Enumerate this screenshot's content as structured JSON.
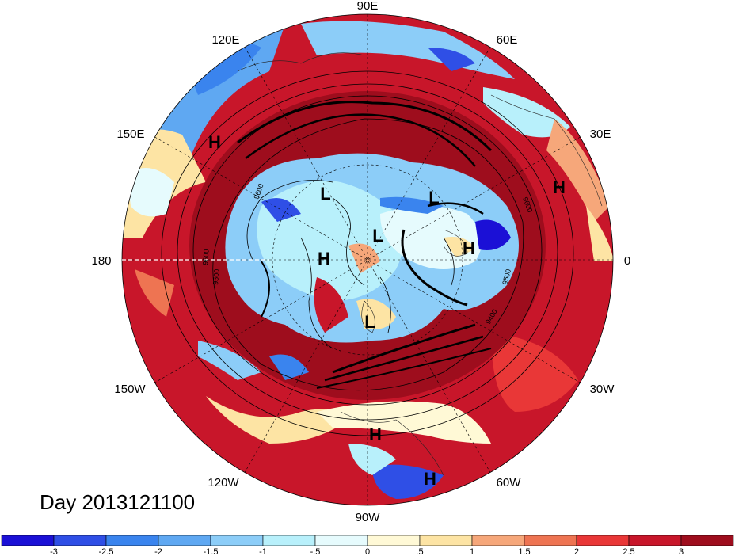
{
  "map": {
    "projection": "north-polar-stereographic",
    "longitude_labels": {
      "top": "90E",
      "upper_left": "120E",
      "upper_right": "60E",
      "left_upper": "150E",
      "right_upper": "30E",
      "left": "180",
      "right": "0",
      "left_lower": "150W",
      "right_lower": "30W",
      "lower_left": "120W",
      "lower_right": "60W",
      "bottom": "90W"
    },
    "pressure_centers": [
      "H",
      "H",
      "L",
      "L",
      "L",
      "H",
      "H",
      "L",
      "H",
      "H"
    ],
    "contour_labels": [
      "9600",
      "9600",
      "9500",
      "9500",
      "9600",
      "9400"
    ],
    "contour_lines": "height contours, black",
    "date_line_marker": "dashed white line at 180"
  },
  "title": "Day 2013121100",
  "colorbar": {
    "tick_labels": [
      "-3",
      "-2.5",
      "-2",
      "-1.5",
      "-1",
      "-.5",
      "0",
      ".5",
      "1",
      "1.5",
      "2",
      "2.5",
      "3"
    ],
    "colors": [
      "#1b10d6",
      "#2f4fe6",
      "#3a84ee",
      "#5fa8f2",
      "#8ccdf8",
      "#b8f0fb",
      "#e6fbfd",
      "#fff9d6",
      "#fde4a4",
      "#f6a77a",
      "#ee7452",
      "#e93737",
      "#c8162a",
      "#9e0d1d"
    ]
  }
}
